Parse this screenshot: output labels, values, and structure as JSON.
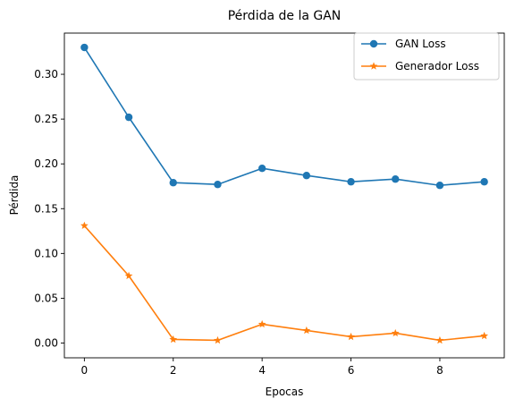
{
  "chart_data": {
    "type": "line",
    "title": "Pérdida de la GAN",
    "xlabel": "Epocas",
    "ylabel": "Pérdida",
    "x": [
      0,
      1,
      2,
      3,
      4,
      5,
      6,
      7,
      8,
      9
    ],
    "xlim": [
      -0.45,
      9.45
    ],
    "ylim": [
      -0.0165,
      0.346
    ],
    "xticks": [
      0,
      2,
      4,
      6,
      8
    ],
    "xtick_labels": [
      "0",
      "2",
      "4",
      "6",
      "8"
    ],
    "yticks": [
      0.0,
      0.05,
      0.1,
      0.15,
      0.2,
      0.25,
      0.3
    ],
    "ytick_labels": [
      "0.00",
      "0.05",
      "0.10",
      "0.15",
      "0.20",
      "0.25",
      "0.30"
    ],
    "grid": false,
    "legend_position": "top-right",
    "series": [
      {
        "name": "GAN Loss",
        "marker": "circle",
        "color": "#1f77b4",
        "values": [
          0.33,
          0.252,
          0.179,
          0.177,
          0.195,
          0.187,
          0.18,
          0.183,
          0.176,
          0.18
        ]
      },
      {
        "name": "Generador Loss",
        "marker": "star",
        "color": "#ff7f0e",
        "values": [
          0.131,
          0.075,
          0.004,
          0.003,
          0.021,
          0.014,
          0.007,
          0.011,
          0.003,
          0.008
        ]
      }
    ]
  }
}
